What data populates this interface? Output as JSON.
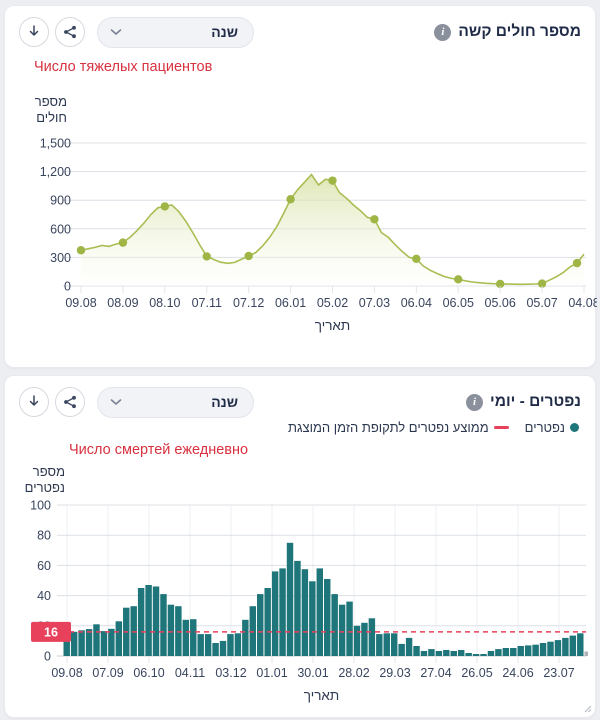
{
  "cards": [
    {
      "title": "מספר חולים קשה",
      "subtitle_ru": "Число тяжелых пациентов",
      "dropdown_label": "שנה",
      "y_axis_title_lines": [
        "מספר",
        "חולים"
      ],
      "x_axis_title": "תאריך"
    },
    {
      "title": "נפטרים - יומי",
      "subtitle_ru": "Число смертей ежедневно",
      "dropdown_label": "שנה",
      "y_axis_title_lines": [
        "מספר",
        "נפטרים"
      ],
      "x_axis_title": "תאריך",
      "legend": [
        {
          "label": "נפטרים",
          "marker": "dot",
          "color": "#1e757a"
        },
        {
          "label": "ממוצע נפטרים לתקופת הזמן המוצגת",
          "marker": "dash",
          "color": "#e8415c"
        }
      ]
    }
  ],
  "chart_data": [
    {
      "type": "area",
      "title": "מספר חולים קשה",
      "subtitle": "Число тяжелых пациентов",
      "xlabel": "תאריך",
      "ylabel": "מספר חולים",
      "ylim": [
        0,
        1500
      ],
      "y_ticks": [
        0,
        300,
        600,
        900,
        1200,
        1500
      ],
      "y_tick_labels": [
        "0",
        "300",
        "600",
        "900",
        "1,200",
        "1,500"
      ],
      "x_ticks": [
        "09.08",
        "08.09",
        "08.10",
        "07.11",
        "07.12",
        "06.01",
        "05.02",
        "07.03",
        "06.04",
        "06.05",
        "05.06",
        "05.07",
        "04.08"
      ],
      "values": [
        375,
        390,
        405,
        425,
        415,
        440,
        455,
        510,
        580,
        660,
        750,
        820,
        835,
        850,
        780,
        680,
        560,
        430,
        310,
        278,
        250,
        238,
        248,
        282,
        315,
        350,
        420,
        510,
        620,
        760,
        910,
        1010,
        1090,
        1170,
        1060,
        1120,
        1105,
        980,
        920,
        850,
        790,
        720,
        700,
        560,
        510,
        430,
        360,
        300,
        285,
        210,
        165,
        130,
        100,
        80,
        70,
        55,
        42,
        35,
        28,
        24,
        22,
        20,
        19,
        18,
        19,
        21,
        25,
        60,
        95,
        140,
        200,
        240,
        335
      ],
      "marker_indices": [
        0,
        6,
        12,
        18,
        24,
        30,
        36,
        42,
        48,
        54,
        60,
        66,
        71
      ],
      "line_color": "#a8bd52",
      "marker_color": "#9fb647",
      "fill_top_color": "#c6d47f",
      "fill_bottom_color": "#fdfef8",
      "grid": "horizontal"
    },
    {
      "type": "bar",
      "title": "נפטרים - יומי",
      "subtitle": "Число смертей ежедневно",
      "xlabel": "תאריך",
      "ylabel": "מספר נפטרים",
      "ylim": [
        0,
        100
      ],
      "y_ticks": [
        0,
        20,
        40,
        60,
        80,
        100
      ],
      "y_tick_labels": [
        "0",
        "20",
        "40",
        "60",
        "80",
        "100"
      ],
      "x_ticks": [
        "09.08",
        "07.09",
        "06.10",
        "04.11",
        "03.12",
        "01.01",
        "30.01",
        "28.02",
        "29.03",
        "27.04",
        "26.05",
        "24.06",
        "23.07"
      ],
      "values": [
        18,
        16,
        17,
        17.8,
        21,
        16.5,
        18,
        23,
        32,
        33,
        45,
        47,
        46,
        41,
        34,
        33,
        24,
        24.4,
        14.5,
        14.5,
        8.6,
        10,
        14.5,
        15,
        24,
        33,
        41,
        45,
        56,
        58,
        75,
        63,
        57.5,
        49.5,
        58,
        51,
        41,
        34,
        36,
        20,
        22,
        25,
        14.5,
        15,
        15,
        8,
        12,
        6.6,
        3.3,
        4.6,
        3.3,
        4,
        3.3,
        4,
        2,
        1.3,
        1.3,
        3.3,
        4.6,
        5.3,
        5.3,
        6.6,
        7,
        7.5,
        8.6,
        9.5,
        10.5,
        12,
        13.5,
        15
      ],
      "bar_color": "#1e757a",
      "last_partial_bar": {
        "value": 3,
        "color": "#aeb1b6"
      },
      "average_line": {
        "value": 16,
        "label": "16",
        "color": "#e8415c"
      },
      "grid": "both"
    }
  ]
}
